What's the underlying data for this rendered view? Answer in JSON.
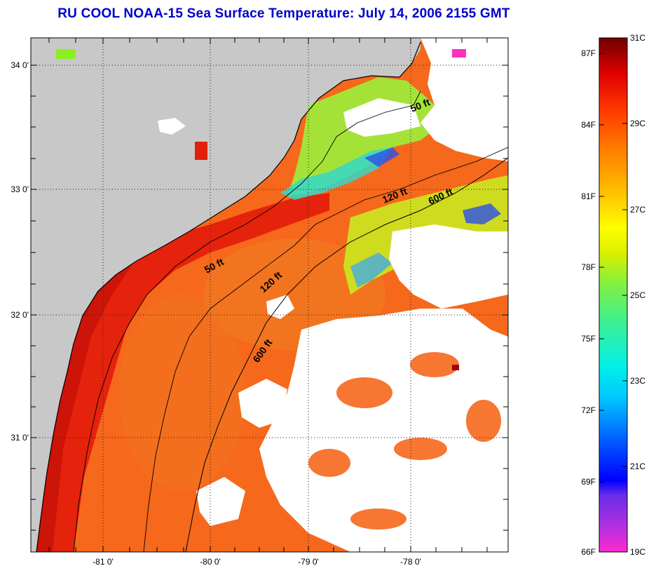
{
  "title": "RU COOL  NOAA-15  Sea Surface Temperature:  July 14, 2006 2155 GMT",
  "map": {
    "lon_labels": [
      "-81 0'",
      "-80 0'",
      "-79 0'",
      "-78 0'"
    ],
    "lat_labels": [
      "34 0'",
      "33 0'",
      "32 0'",
      "31 0'"
    ],
    "contour_labels": [
      "50 ft",
      "120 ft",
      "600 ft",
      "50 ft",
      "120 ft",
      "600 ft"
    ],
    "colors": {
      "land": "#c8c8c8",
      "nearshore": "#e81c0a",
      "offshore": "#f7641a",
      "cloud": "#ffffff",
      "cool_water": "#3ad8a0"
    }
  },
  "colorbar": {
    "fahrenheit_labels": [
      "87F",
      "84F",
      "81F",
      "78F",
      "75F",
      "72F",
      "69F",
      "66F"
    ],
    "celsius_labels": [
      "31C",
      "29C",
      "27C",
      "25C",
      "23C",
      "21C",
      "19C"
    ]
  }
}
